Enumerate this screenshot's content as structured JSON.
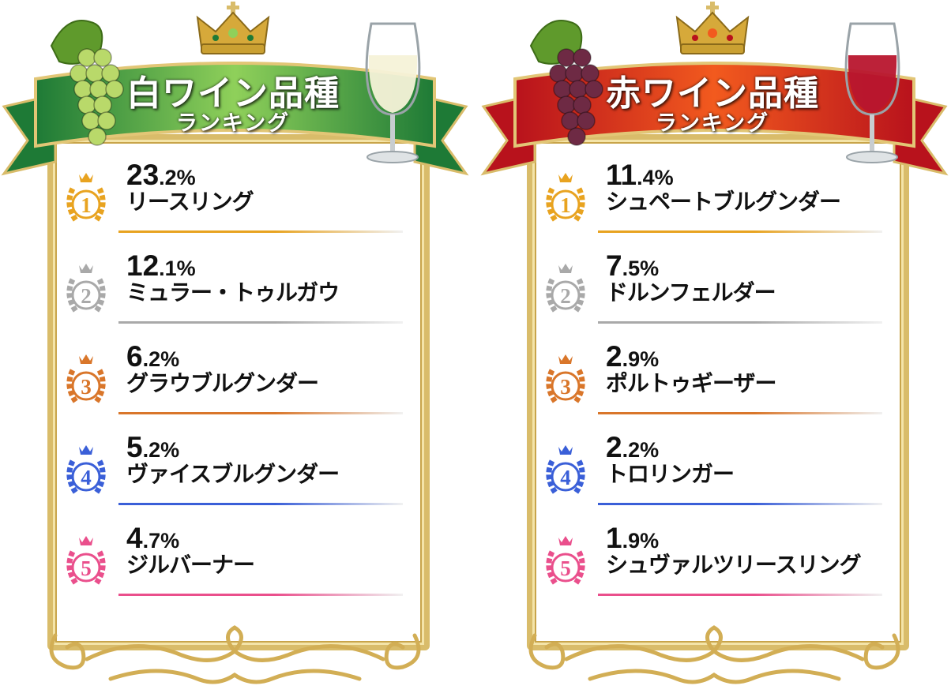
{
  "panels": [
    {
      "id": "white",
      "title": "白ワイン品種",
      "subtitle": "ランキング",
      "ribbon_color": "#1e7a36",
      "ribbon_light": "#8fd05a",
      "grape_color": "#b9d96a",
      "wine_color": "#f6f2d8",
      "entries": [
        {
          "rank": "1",
          "pct_int": "23",
          "pct_dec": ".2%",
          "name": "リースリング",
          "color": "#e8a320"
        },
        {
          "rank": "2",
          "pct_int": "12",
          "pct_dec": ".1%",
          "name": "ミュラー・トゥルガウ",
          "color": "#a9a9a9"
        },
        {
          "rank": "3",
          "pct_int": "6",
          "pct_dec": ".2%",
          "name": "グラウブルグンダー",
          "color": "#d9762a"
        },
        {
          "rank": "4",
          "pct_int": "5",
          "pct_dec": ".2%",
          "name": "ヴァイスブルグンダー",
          "color": "#3a5fd8"
        },
        {
          "rank": "5",
          "pct_int": "4",
          "pct_dec": ".7%",
          "name": "ジルバーナー",
          "color": "#ea4f8c"
        }
      ]
    },
    {
      "id": "red",
      "title": "赤ワイン品種",
      "subtitle": "ランキング",
      "ribbon_color": "#b8121c",
      "ribbon_light": "#f25a1e",
      "grape_color": "#6e2a44",
      "wine_color": "#b8162e",
      "entries": [
        {
          "rank": "1",
          "pct_int": "11",
          "pct_dec": ".4%",
          "name": "シュペートブルグンダー",
          "color": "#e8a320"
        },
        {
          "rank": "2",
          "pct_int": "7",
          "pct_dec": ".5%",
          "name": "ドルンフェルダー",
          "color": "#a9a9a9"
        },
        {
          "rank": "3",
          "pct_int": "2",
          "pct_dec": ".9%",
          "name": "ポルトゥギーザー",
          "color": "#d9762a"
        },
        {
          "rank": "4",
          "pct_int": "2",
          "pct_dec": ".2%",
          "name": "トロリンガー",
          "color": "#3a5fd8"
        },
        {
          "rank": "5",
          "pct_int": "1",
          "pct_dec": ".9%",
          "name": "シュヴァルツリースリング",
          "color": "#ea4f8c"
        }
      ]
    }
  ],
  "icons": {
    "crown": "crown-icon",
    "grapes": "grapes-icon",
    "glass": "wine-glass-icon",
    "medal": "laurel-medal-icon",
    "ornament": "gold-scroll-ornament"
  }
}
